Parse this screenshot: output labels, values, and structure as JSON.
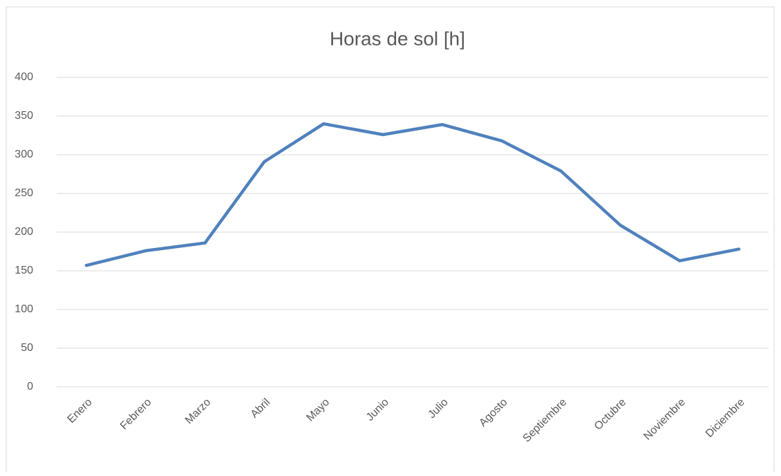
{
  "chart_data": {
    "type": "line",
    "title": "Horas de sol [h]",
    "categories": [
      "Enero",
      "Febrero",
      "Marzo",
      "Abril",
      "Mayo",
      "Junio",
      "Julio",
      "Agosto",
      "Septiembre",
      "Octubre",
      "Noviembre",
      "Diciembre"
    ],
    "series": [
      {
        "name": "Horas de sol [h]",
        "color": "#4f81bd",
        "values": [
          157,
          176,
          186,
          291,
          340,
          326,
          339,
          318,
          279,
          209,
          163,
          178
        ]
      }
    ],
    "ylim": [
      0,
      400
    ],
    "yticks": [
      0,
      50,
      100,
      150,
      200,
      250,
      300,
      350,
      400
    ],
    "grid": true
  }
}
